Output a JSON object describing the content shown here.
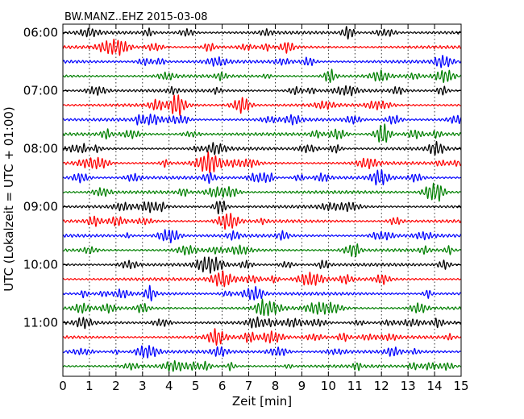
{
  "chart_data": {
    "type": "line",
    "title": "BW.MANZ..EHZ 2015-03-08",
    "xlabel": "Zeit  [min]",
    "ylabel": "UTC (Lokalzeit = UTC + 01:00)",
    "xlim": [
      0,
      15
    ],
    "x_ticks": [
      "0",
      "1",
      "2",
      "3",
      "4",
      "5",
      "6",
      "7",
      "8",
      "9",
      "10",
      "11",
      "12",
      "13",
      "14",
      "15"
    ],
    "y_tick_labels": [
      "06:00",
      "07:00",
      "08:00",
      "09:00",
      "10:00",
      "11:00"
    ],
    "rows_per_hour": 4,
    "grid": true,
    "trace_colors": [
      "#000000",
      "#ff0000",
      "#0000ff",
      "#008000"
    ],
    "series": [
      {
        "start": "06:00"
      },
      {
        "start": "06:15"
      },
      {
        "start": "06:30"
      },
      {
        "start": "06:45"
      },
      {
        "start": "07:00"
      },
      {
        "start": "07:15"
      },
      {
        "start": "07:30"
      },
      {
        "start": "07:45"
      },
      {
        "start": "08:00"
      },
      {
        "start": "08:15"
      },
      {
        "start": "08:30"
      },
      {
        "start": "08:45"
      },
      {
        "start": "09:00"
      },
      {
        "start": "09:15"
      },
      {
        "start": "09:30"
      },
      {
        "start": "09:45"
      },
      {
        "start": "10:00"
      },
      {
        "start": "10:15"
      },
      {
        "start": "10:30"
      },
      {
        "start": "10:45"
      },
      {
        "start": "11:00"
      },
      {
        "start": "11:15"
      },
      {
        "start": "11:30"
      },
      {
        "start": "11:45"
      }
    ]
  }
}
